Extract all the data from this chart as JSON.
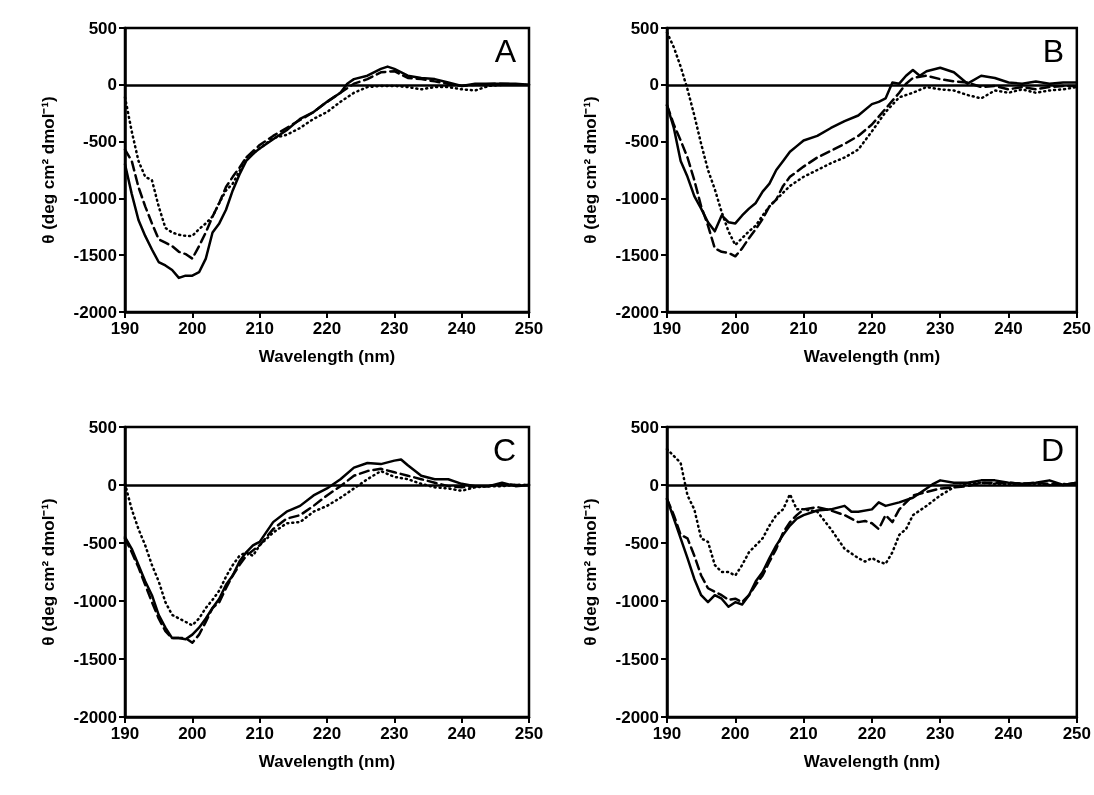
{
  "chart_data": [
    {
      "type": "line",
      "title": "A",
      "xlabel": "Wavelength (nm)",
      "ylabel": "θ (deg cm² dmol⁻¹)",
      "xlim": [
        190,
        250
      ],
      "ylim": [
        -2000,
        500
      ],
      "xticks": [
        190,
        200,
        210,
        220,
        230,
        240,
        250
      ],
      "yticks": [
        -2000,
        -1500,
        -1000,
        -500,
        0,
        500
      ],
      "grid": false,
      "marker": "none",
      "ref_lines": [
        {
          "axis": "y",
          "value": 0,
          "color": "#000000"
        }
      ],
      "series": [
        {
          "color": "#000000",
          "line_style": "solid",
          "x": [
            190,
            191,
            192,
            193,
            194,
            195,
            196,
            197,
            198,
            199,
            200,
            201,
            202,
            203,
            204,
            205,
            206,
            207,
            208,
            209,
            210,
            212,
            214,
            216,
            218,
            220,
            222,
            223,
            224,
            226,
            228,
            229,
            230,
            232,
            234,
            236,
            238,
            240,
            242,
            244,
            246,
            248,
            250
          ],
          "values": [
            -700,
            -960,
            -1190,
            -1330,
            -1450,
            -1560,
            -1590,
            -1630,
            -1700,
            -1680,
            -1680,
            -1650,
            -1530,
            -1300,
            -1220,
            -1100,
            -930,
            -790,
            -670,
            -610,
            -560,
            -480,
            -400,
            -300,
            -240,
            -150,
            -70,
            10,
            50,
            80,
            140,
            160,
            140,
            80,
            60,
            50,
            20,
            -10,
            10,
            10,
            10,
            10,
            0
          ]
        },
        {
          "color": "#000000",
          "line_style": "dashed",
          "x": [
            190,
            191,
            192,
            193,
            194,
            195,
            196,
            197,
            198,
            199,
            200,
            201,
            202,
            203,
            204,
            205,
            206,
            207,
            208,
            210,
            212,
            214,
            216,
            218,
            220,
            222,
            224,
            226,
            228,
            230,
            232,
            234,
            236,
            238,
            240,
            242,
            245,
            250
          ],
          "values": [
            -570,
            -670,
            -900,
            -1070,
            -1220,
            -1360,
            -1390,
            -1420,
            -1470,
            -1490,
            -1530,
            -1420,
            -1300,
            -1160,
            -1040,
            -900,
            -810,
            -730,
            -640,
            -530,
            -450,
            -380,
            -310,
            -240,
            -150,
            -70,
            10,
            50,
            110,
            120,
            60,
            50,
            30,
            10,
            -10,
            0,
            10,
            0
          ]
        },
        {
          "color": "#000000",
          "line_style": "dotted",
          "x": [
            190,
            191,
            192,
            193,
            194,
            195,
            196,
            197,
            198,
            199,
            200,
            201,
            202,
            203,
            204,
            205,
            206,
            207,
            208,
            210,
            212,
            214,
            216,
            218,
            220,
            222,
            224,
            226,
            228,
            230,
            232,
            234,
            236,
            238,
            240,
            242,
            244,
            246,
            250
          ],
          "values": [
            -110,
            -410,
            -670,
            -810,
            -840,
            -1070,
            -1260,
            -1300,
            -1320,
            -1330,
            -1330,
            -1270,
            -1220,
            -1160,
            -1040,
            -930,
            -870,
            -760,
            -640,
            -560,
            -470,
            -440,
            -380,
            -300,
            -240,
            -150,
            -70,
            -20,
            -10,
            -10,
            -20,
            -40,
            -20,
            -20,
            -40,
            -50,
            -10,
            0,
            0
          ]
        }
      ]
    },
    {
      "type": "line",
      "title": "B",
      "xlabel": "Wavelength (nm)",
      "ylabel": "θ (deg cm² dmol⁻¹)",
      "xlim": [
        190,
        250
      ],
      "ylim": [
        -2000,
        500
      ],
      "xticks": [
        190,
        200,
        210,
        220,
        230,
        240,
        250
      ],
      "yticks": [
        -2000,
        -1500,
        -1000,
        -500,
        0,
        500
      ],
      "grid": false,
      "marker": "none",
      "ref_lines": [
        {
          "axis": "y",
          "value": 0,
          "color": "#000000"
        }
      ],
      "series": [
        {
          "color": "#000000",
          "line_style": "solid",
          "x": [
            190,
            191,
            192,
            193,
            194,
            195,
            196,
            197,
            198,
            199,
            200,
            201,
            202,
            203,
            204,
            205,
            206,
            207,
            208,
            209,
            210,
            212,
            214,
            216,
            218,
            220,
            221,
            222,
            223,
            224,
            225,
            226,
            227,
            228,
            230,
            232,
            234,
            236,
            238,
            240,
            242,
            244,
            246,
            248,
            250
          ],
          "values": [
            -180,
            -380,
            -670,
            -810,
            -980,
            -1090,
            -1210,
            -1290,
            -1150,
            -1210,
            -1220,
            -1150,
            -1090,
            -1040,
            -940,
            -870,
            -750,
            -670,
            -590,
            -540,
            -490,
            -450,
            -380,
            -320,
            -270,
            -170,
            -150,
            -120,
            20,
            10,
            80,
            130,
            80,
            120,
            150,
            110,
            10,
            80,
            60,
            20,
            10,
            30,
            10,
            20,
            20
          ]
        },
        {
          "color": "#000000",
          "line_style": "dashed",
          "x": [
            190,
            191,
            192,
            193,
            194,
            195,
            196,
            197,
            198,
            199,
            200,
            201,
            202,
            203,
            204,
            205,
            206,
            207,
            208,
            210,
            212,
            214,
            216,
            218,
            220,
            222,
            224,
            225,
            226,
            228,
            230,
            232,
            234,
            236,
            238,
            240,
            242,
            244,
            246,
            248,
            250
          ],
          "values": [
            -180,
            -350,
            -490,
            -640,
            -840,
            -1070,
            -1240,
            -1440,
            -1470,
            -1480,
            -1510,
            -1440,
            -1350,
            -1270,
            -1180,
            -1070,
            -1010,
            -890,
            -810,
            -720,
            -640,
            -580,
            -520,
            -450,
            -350,
            -210,
            -70,
            10,
            60,
            80,
            50,
            30,
            20,
            -20,
            -10,
            -40,
            -20,
            -40,
            -20,
            -10,
            -10
          ]
        },
        {
          "color": "#000000",
          "line_style": "dotted",
          "x": [
            190,
            191,
            192,
            193,
            194,
            195,
            196,
            197,
            198,
            199,
            200,
            201,
            202,
            203,
            204,
            205,
            206,
            207,
            208,
            210,
            212,
            214,
            216,
            218,
            220,
            222,
            224,
            226,
            228,
            230,
            232,
            234,
            236,
            238,
            240,
            242,
            244,
            246,
            248,
            250
          ],
          "values": [
            460,
            330,
            160,
            -40,
            -270,
            -520,
            -750,
            -920,
            -1120,
            -1290,
            -1410,
            -1350,
            -1290,
            -1240,
            -1150,
            -1070,
            -1010,
            -950,
            -890,
            -810,
            -750,
            -690,
            -640,
            -570,
            -410,
            -240,
            -110,
            -70,
            -20,
            -40,
            -50,
            -90,
            -120,
            -50,
            -70,
            -40,
            -70,
            -50,
            -40,
            -20
          ]
        }
      ]
    },
    {
      "type": "line",
      "title": "C",
      "xlabel": "Wavelength (nm)",
      "ylabel": "θ (deg cm² dmol⁻¹)",
      "xlim": [
        190,
        250
      ],
      "ylim": [
        -2000,
        500
      ],
      "xticks": [
        190,
        200,
        210,
        220,
        230,
        240,
        250
      ],
      "yticks": [
        -2000,
        -1500,
        -1000,
        -500,
        0,
        500
      ],
      "grid": false,
      "marker": "none",
      "ref_lines": [
        {
          "axis": "y",
          "value": 0,
          "color": "#000000"
        }
      ],
      "series": [
        {
          "color": "#000000",
          "line_style": "solid",
          "x": [
            190,
            191,
            192,
            193,
            194,
            195,
            196,
            197,
            198,
            199,
            200,
            201,
            202,
            203,
            204,
            205,
            206,
            207,
            208,
            209,
            210,
            212,
            214,
            216,
            218,
            219,
            220,
            222,
            224,
            226,
            228,
            230,
            231,
            232,
            234,
            236,
            238,
            240,
            242,
            244,
            246,
            248,
            250
          ],
          "values": [
            -450,
            -550,
            -690,
            -830,
            -950,
            -1120,
            -1230,
            -1320,
            -1320,
            -1330,
            -1290,
            -1230,
            -1150,
            -1060,
            -980,
            -860,
            -780,
            -660,
            -580,
            -520,
            -490,
            -320,
            -230,
            -180,
            -90,
            -60,
            -30,
            50,
            150,
            190,
            180,
            210,
            220,
            170,
            80,
            50,
            50,
            10,
            -10,
            -10,
            20,
            -10,
            0
          ]
        },
        {
          "color": "#000000",
          "line_style": "dashed",
          "x": [
            190,
            191,
            192,
            193,
            194,
            195,
            196,
            197,
            198,
            199,
            200,
            201,
            202,
            203,
            204,
            205,
            206,
            207,
            208,
            210,
            212,
            214,
            216,
            218,
            220,
            222,
            224,
            226,
            228,
            230,
            232,
            234,
            236,
            238,
            240,
            242,
            244,
            246,
            248,
            250
          ],
          "values": [
            -460,
            -580,
            -710,
            -860,
            -1010,
            -1150,
            -1260,
            -1320,
            -1320,
            -1320,
            -1360,
            -1290,
            -1180,
            -1060,
            -1010,
            -890,
            -780,
            -690,
            -610,
            -520,
            -380,
            -290,
            -260,
            -180,
            -90,
            -10,
            80,
            120,
            140,
            110,
            80,
            50,
            20,
            -10,
            -20,
            -10,
            -10,
            10,
            0,
            0
          ]
        },
        {
          "color": "#000000",
          "line_style": "dotted",
          "x": [
            190,
            191,
            192,
            193,
            194,
            195,
            196,
            197,
            198,
            199,
            200,
            201,
            202,
            203,
            204,
            205,
            206,
            207,
            208,
            209,
            210,
            212,
            214,
            216,
            218,
            220,
            222,
            224,
            226,
            228,
            230,
            232,
            234,
            236,
            238,
            240,
            242,
            244,
            246,
            248,
            250
          ],
          "values": [
            10,
            -210,
            -380,
            -520,
            -690,
            -830,
            -1010,
            -1120,
            -1150,
            -1180,
            -1210,
            -1150,
            -1060,
            -990,
            -910,
            -790,
            -690,
            -610,
            -580,
            -610,
            -520,
            -410,
            -330,
            -320,
            -230,
            -180,
            -110,
            -30,
            50,
            120,
            70,
            50,
            10,
            -20,
            -30,
            -50,
            -20,
            -10,
            -10,
            0,
            0
          ]
        }
      ]
    },
    {
      "type": "line",
      "title": "D",
      "xlabel": "Wavelength (nm)",
      "ylabel": "θ (deg cm² dmol⁻¹)",
      "xlim": [
        190,
        250
      ],
      "ylim": [
        -2000,
        500
      ],
      "xticks": [
        190,
        200,
        210,
        220,
        230,
        240,
        250
      ],
      "yticks": [
        -2000,
        -1500,
        -1000,
        -500,
        0,
        500
      ],
      "grid": false,
      "marker": "none",
      "ref_lines": [
        {
          "axis": "y",
          "value": 0,
          "color": "#000000"
        }
      ],
      "series": [
        {
          "color": "#000000",
          "line_style": "solid",
          "x": [
            190,
            191,
            192,
            193,
            194,
            195,
            196,
            197,
            198,
            199,
            200,
            201,
            202,
            203,
            204,
            205,
            206,
            207,
            208,
            209,
            210,
            212,
            214,
            216,
            217,
            218,
            220,
            221,
            222,
            224,
            226,
            228,
            229,
            230,
            232,
            234,
            236,
            238,
            240,
            242,
            244,
            246,
            248,
            250
          ],
          "values": [
            -120,
            -290,
            -460,
            -630,
            -810,
            -950,
            -1010,
            -950,
            -980,
            -1050,
            -1010,
            -1030,
            -950,
            -830,
            -750,
            -630,
            -520,
            -430,
            -350,
            -290,
            -260,
            -220,
            -210,
            -180,
            -230,
            -230,
            -210,
            -150,
            -180,
            -150,
            -110,
            -30,
            10,
            40,
            20,
            20,
            40,
            40,
            20,
            10,
            20,
            40,
            0,
            20
          ]
        },
        {
          "color": "#000000",
          "line_style": "dashed",
          "x": [
            190,
            191,
            192,
            193,
            194,
            195,
            196,
            197,
            198,
            199,
            200,
            201,
            202,
            203,
            204,
            205,
            206,
            207,
            208,
            209,
            210,
            212,
            214,
            216,
            218,
            219,
            220,
            221,
            222,
            223,
            224,
            226,
            228,
            230,
            232,
            234,
            236,
            238,
            240,
            242,
            244,
            246,
            248,
            250
          ],
          "values": [
            -120,
            -260,
            -430,
            -460,
            -610,
            -780,
            -890,
            -920,
            -950,
            -990,
            -980,
            -1010,
            -950,
            -860,
            -780,
            -660,
            -550,
            -410,
            -320,
            -260,
            -210,
            -190,
            -220,
            -260,
            -320,
            -310,
            -330,
            -380,
            -260,
            -320,
            -210,
            -90,
            -60,
            -30,
            -20,
            -10,
            20,
            20,
            20,
            10,
            20,
            10,
            0,
            20
          ]
        },
        {
          "color": "#000000",
          "line_style": "dotted",
          "x": [
            190,
            191,
            192,
            193,
            194,
            195,
            196,
            197,
            198,
            199,
            200,
            201,
            202,
            203,
            204,
            205,
            206,
            207,
            208,
            209,
            210,
            212,
            214,
            216,
            218,
            219,
            220,
            221,
            222,
            223,
            224,
            225,
            226,
            228,
            230,
            232,
            234,
            236,
            238,
            240,
            242,
            244,
            246,
            248,
            250
          ],
          "values": [
            310,
            250,
            190,
            -90,
            -210,
            -460,
            -490,
            -690,
            -750,
            -750,
            -780,
            -690,
            -580,
            -520,
            -460,
            -350,
            -260,
            -210,
            -80,
            -210,
            -210,
            -230,
            -380,
            -550,
            -630,
            -660,
            -630,
            -660,
            -680,
            -580,
            -430,
            -380,
            -260,
            -180,
            -90,
            -20,
            10,
            20,
            10,
            0,
            10,
            10,
            0,
            10,
            0
          ]
        }
      ]
    }
  ]
}
